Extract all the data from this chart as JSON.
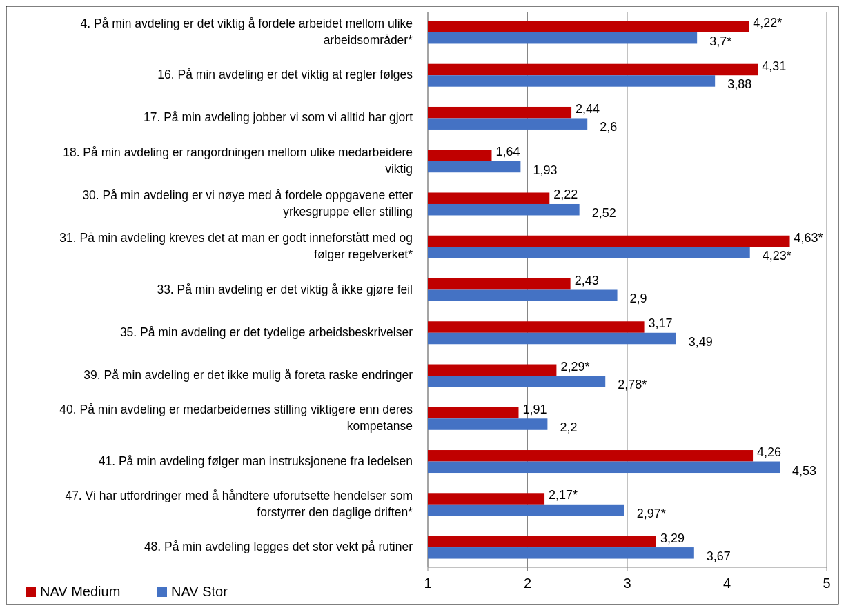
{
  "chart_data": {
    "type": "bar",
    "orientation": "horizontal",
    "categories": [
      "4. På min avdeling er det viktig å fordele arbeidet mellom ulike arbeidsområder*",
      "16. På min avdeling er det viktig at regler følges",
      "17. På min avdeling jobber vi som vi alltid har gjort",
      "18. På min avdeling er rangordningen mellom ulike medarbeidere viktig",
      "30. På min avdeling er vi nøye med å fordele oppgavene etter yrkesgruppe eller stilling",
      "31. På min avdeling kreves det at man er godt inneforstått med og følger regelverket*",
      "33. På min avdeling er det viktig å ikke gjøre feil",
      "35. På min avdeling er det tydelige arbeidsbeskrivelser",
      "39. På min avdeling er det ikke mulig å foreta raske endringer",
      "40. På min avdeling er medarbeidernes stilling viktigere enn deres kompetanse",
      "41. På min avdeling følger man instruksjonene fra ledelsen",
      "47. Vi har utfordringer med å håndtere uforutsette hendelser som forstyrrer den daglige driften*",
      "48. På min avdeling legges det stor vekt på rutiner"
    ],
    "series": [
      {
        "name": "NAV Medium",
        "color": "#c00000",
        "values": [
          4.22,
          4.31,
          2.44,
          1.64,
          2.22,
          4.63,
          2.43,
          3.17,
          2.29,
          1.91,
          4.26,
          2.17,
          3.29
        ],
        "value_labels": [
          "4,22*",
          "4,31",
          "2,44",
          "1,64",
          "2,22",
          "4,63*",
          "2,43",
          "3,17",
          "2,29*",
          "1,91",
          "4,26",
          "2,17*",
          "3,29"
        ]
      },
      {
        "name": "NAV Stor",
        "color": "#4472c4",
        "values": [
          3.7,
          3.88,
          2.6,
          1.93,
          2.52,
          4.23,
          2.9,
          3.49,
          2.78,
          2.2,
          4.53,
          2.97,
          3.67
        ],
        "value_labels": [
          "3,7*",
          "3,88",
          "2,6",
          "1,93",
          "2,52",
          "4,23*",
          "2,9",
          "3,49",
          "2,78*",
          "2,2",
          "4,53",
          "2,97*",
          "3,67"
        ]
      }
    ],
    "xlim": [
      1,
      5
    ],
    "xticks": [
      1,
      2,
      3,
      4,
      5
    ],
    "grid": "x",
    "legend": "bottom left"
  }
}
